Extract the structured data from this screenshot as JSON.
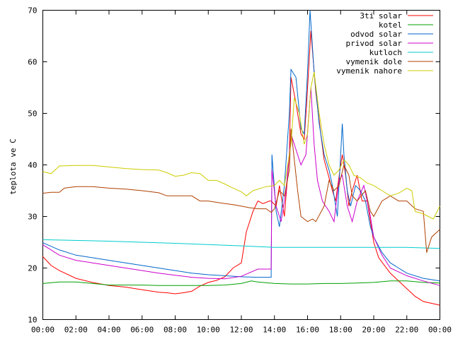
{
  "chart_data": {
    "type": "line",
    "ylabel": "teplota ve C",
    "xlabel": "",
    "ylim": [
      10,
      70
    ],
    "yticks": [
      "10",
      "20",
      "30",
      "40",
      "50",
      "60",
      "70"
    ],
    "xticks": [
      "00:00",
      "02:00",
      "04:00",
      "06:00",
      "08:00",
      "10:00",
      "12:00",
      "14:00",
      "16:00",
      "18:00",
      "20:00",
      "22:00",
      "00:00"
    ],
    "legend_position": "top-right",
    "grid": false,
    "series": [
      {
        "name": "3ti solar",
        "color": "#ff0000",
        "points": [
          [
            0,
            22.2
          ],
          [
            0.5,
            20.5
          ],
          [
            1,
            19.5
          ],
          [
            2,
            18
          ],
          [
            3,
            17.2
          ],
          [
            4,
            16.6
          ],
          [
            5,
            16.3
          ],
          [
            6,
            15.8
          ],
          [
            7,
            15.3
          ],
          [
            7.5,
            15.2
          ],
          [
            8,
            15
          ],
          [
            8.5,
            15.2
          ],
          [
            9,
            15.5
          ],
          [
            9.5,
            16.5
          ],
          [
            10,
            17.2
          ],
          [
            10.5,
            17.6
          ],
          [
            11,
            18.3
          ],
          [
            11.5,
            20
          ],
          [
            12,
            21
          ],
          [
            12.3,
            27
          ],
          [
            12.7,
            31
          ],
          [
            13,
            33
          ],
          [
            13.3,
            32.5
          ],
          [
            13.7,
            33
          ],
          [
            13.8,
            33
          ],
          [
            14.1,
            32
          ],
          [
            14.3,
            36
          ],
          [
            14.6,
            30
          ],
          [
            14.9,
            42
          ],
          [
            15.0,
            57
          ],
          [
            15.3,
            52
          ],
          [
            15.6,
            46
          ],
          [
            15.8,
            45
          ],
          [
            15.95,
            52
          ],
          [
            16.2,
            66
          ],
          [
            16.5,
            54
          ],
          [
            16.8,
            46
          ],
          [
            17,
            41
          ],
          [
            17.3,
            37.5
          ],
          [
            17.5,
            35
          ],
          [
            17.7,
            33
          ],
          [
            18,
            40
          ],
          [
            18.1,
            42
          ],
          [
            18.3,
            38
          ],
          [
            18.5,
            32
          ],
          [
            18.7,
            35
          ],
          [
            19,
            38
          ],
          [
            19.3,
            33
          ],
          [
            19.6,
            33
          ],
          [
            20,
            25
          ],
          [
            20.3,
            22
          ],
          [
            21,
            19
          ],
          [
            21.5,
            17.5
          ],
          [
            22,
            16
          ],
          [
            22.5,
            14.5
          ],
          [
            23,
            13.5
          ],
          [
            24,
            12.8
          ]
        ]
      },
      {
        "name": "kotel",
        "color": "#00a000",
        "points": [
          [
            0,
            17
          ],
          [
            1,
            17.3
          ],
          [
            2,
            17.3
          ],
          [
            3,
            17
          ],
          [
            4,
            16.7
          ],
          [
            5,
            16.7
          ],
          [
            6,
            16.7
          ],
          [
            7,
            16.6
          ],
          [
            8,
            16.6
          ],
          [
            9,
            16.6
          ],
          [
            10,
            16.6
          ],
          [
            11,
            16.7
          ],
          [
            12,
            17
          ],
          [
            12.6,
            17.5
          ],
          [
            13,
            17.3
          ],
          [
            14,
            17
          ],
          [
            15,
            16.9
          ],
          [
            16,
            16.9
          ],
          [
            17,
            17
          ],
          [
            18,
            17
          ],
          [
            19,
            17.1
          ],
          [
            20,
            17.2
          ],
          [
            21,
            17.5
          ],
          [
            22,
            17.5
          ],
          [
            23,
            17.2
          ],
          [
            24,
            17.1
          ]
        ]
      },
      {
        "name": "odvod solar",
        "color": "#0066cc",
        "points": [
          [
            0,
            24.9
          ],
          [
            1,
            23.5
          ],
          [
            2,
            22.5
          ],
          [
            3,
            22
          ],
          [
            4,
            21.5
          ],
          [
            5,
            21
          ],
          [
            6,
            20.5
          ],
          [
            7,
            20
          ],
          [
            8,
            19.5
          ],
          [
            9,
            19
          ],
          [
            10,
            18.7
          ],
          [
            11,
            18.5
          ],
          [
            12,
            18.3
          ],
          [
            13,
            18.2
          ],
          [
            13.8,
            18.2
          ],
          [
            13.85,
            42
          ],
          [
            14.1,
            31
          ],
          [
            14.3,
            28
          ],
          [
            14.6,
            36
          ],
          [
            14.9,
            50
          ],
          [
            15.0,
            58.5
          ],
          [
            15.3,
            57
          ],
          [
            15.6,
            47
          ],
          [
            15.8,
            46
          ],
          [
            16,
            58
          ],
          [
            16.15,
            70
          ],
          [
            16.4,
            58
          ],
          [
            16.7,
            48
          ],
          [
            17,
            42
          ],
          [
            17.3,
            39
          ],
          [
            17.5,
            36
          ],
          [
            17.8,
            30
          ],
          [
            18.1,
            48
          ],
          [
            18.2,
            42
          ],
          [
            18.4,
            35
          ],
          [
            18.6,
            32
          ],
          [
            18.9,
            36
          ],
          [
            19.2,
            35
          ],
          [
            19.5,
            33
          ],
          [
            19.8,
            28
          ],
          [
            20,
            26
          ],
          [
            20.5,
            23
          ],
          [
            21,
            21
          ],
          [
            21.5,
            20
          ],
          [
            22,
            19
          ],
          [
            23,
            18
          ],
          [
            24,
            17.5
          ]
        ]
      },
      {
        "name": "privod solar",
        "color": "#cc00cc",
        "points": [
          [
            0,
            24.5
          ],
          [
            1,
            22.5
          ],
          [
            2,
            21.5
          ],
          [
            3,
            21
          ],
          [
            4,
            20.5
          ],
          [
            5,
            20
          ],
          [
            6,
            19.5
          ],
          [
            7,
            19
          ],
          [
            8,
            18.6
          ],
          [
            9,
            18.2
          ],
          [
            10,
            18
          ],
          [
            11,
            17.9
          ],
          [
            12,
            18.4
          ],
          [
            13,
            19.8
          ],
          [
            13.8,
            19.8
          ],
          [
            13.85,
            39
          ],
          [
            14.1,
            32
          ],
          [
            14.4,
            29
          ],
          [
            14.7,
            35
          ],
          [
            15,
            46
          ],
          [
            15.3,
            43
          ],
          [
            15.6,
            40
          ],
          [
            15.9,
            42
          ],
          [
            16.2,
            55
          ],
          [
            16.4,
            44
          ],
          [
            16.6,
            37
          ],
          [
            16.9,
            33
          ],
          [
            17.3,
            31
          ],
          [
            17.6,
            29
          ],
          [
            17.9,
            37
          ],
          [
            18.1,
            38
          ],
          [
            18.4,
            32
          ],
          [
            18.7,
            29
          ],
          [
            19,
            33
          ],
          [
            19.4,
            36
          ],
          [
            19.8,
            30
          ],
          [
            20,
            26
          ],
          [
            20.5,
            22.5
          ],
          [
            21,
            20
          ],
          [
            22,
            18.5
          ],
          [
            23,
            17.5
          ],
          [
            24,
            16.6
          ]
        ]
      },
      {
        "name": "kutloch",
        "color": "#00cccc",
        "points": [
          [
            0,
            25.5
          ],
          [
            4,
            25.2
          ],
          [
            8,
            24.8
          ],
          [
            12,
            24.3
          ],
          [
            14,
            24
          ],
          [
            18,
            24
          ],
          [
            20,
            24
          ],
          [
            22,
            24
          ],
          [
            24,
            23.8
          ]
        ]
      },
      {
        "name": "vymenik dole",
        "color": "#b04000",
        "points": [
          [
            0,
            34.5
          ],
          [
            0.5,
            34.7
          ],
          [
            1,
            34.7
          ],
          [
            1.3,
            35.5
          ],
          [
            2,
            35.8
          ],
          [
            3,
            35.8
          ],
          [
            4,
            35.5
          ],
          [
            5,
            35.3
          ],
          [
            6,
            35
          ],
          [
            7,
            34.6
          ],
          [
            7.5,
            34
          ],
          [
            8,
            34
          ],
          [
            9,
            34
          ],
          [
            9.5,
            33
          ],
          [
            10,
            33
          ],
          [
            11,
            32.5
          ],
          [
            11.5,
            32.3
          ],
          [
            12,
            32
          ],
          [
            12.5,
            31.7
          ],
          [
            13,
            31.5
          ],
          [
            13.5,
            31.5
          ],
          [
            13.8,
            30.8
          ],
          [
            14,
            31.5
          ],
          [
            14.3,
            35
          ],
          [
            14.6,
            34
          ],
          [
            14.9,
            39
          ],
          [
            15,
            47
          ],
          [
            15.2,
            41
          ],
          [
            15.4,
            35
          ],
          [
            15.6,
            30
          ],
          [
            16,
            29
          ],
          [
            16.3,
            29.5
          ],
          [
            16.5,
            29
          ],
          [
            17,
            32
          ],
          [
            17.3,
            37
          ],
          [
            17.6,
            35
          ],
          [
            17.9,
            36
          ],
          [
            18.2,
            40
          ],
          [
            18.5,
            38
          ],
          [
            18.7,
            34
          ],
          [
            19,
            33
          ],
          [
            19.5,
            35
          ],
          [
            19.8,
            31
          ],
          [
            20,
            30
          ],
          [
            20.5,
            33
          ],
          [
            21,
            34
          ],
          [
            21.5,
            33
          ],
          [
            22,
            33
          ],
          [
            22.5,
            31.5
          ],
          [
            23,
            31
          ],
          [
            23.2,
            23
          ],
          [
            23.5,
            26
          ],
          [
            24,
            27.5
          ]
        ]
      },
      {
        "name": "vymenik nahore",
        "color": "#cccc00",
        "points": [
          [
            0,
            38.7
          ],
          [
            0.5,
            38.3
          ],
          [
            1,
            39.8
          ],
          [
            2,
            39.9
          ],
          [
            3,
            39.9
          ],
          [
            4,
            39.6
          ],
          [
            5,
            39.3
          ],
          [
            6,
            39.1
          ],
          [
            7,
            39
          ],
          [
            7.5,
            38.5
          ],
          [
            8,
            37.8
          ],
          [
            8.5,
            38
          ],
          [
            9,
            38.5
          ],
          [
            9.5,
            38.3
          ],
          [
            10,
            37
          ],
          [
            10.5,
            37
          ],
          [
            11,
            36.3
          ],
          [
            11.5,
            35.5
          ],
          [
            12,
            34.8
          ],
          [
            12.3,
            34
          ],
          [
            12.7,
            35
          ],
          [
            13,
            35.3
          ],
          [
            13.5,
            35.8
          ],
          [
            14,
            36
          ],
          [
            14.3,
            37
          ],
          [
            14.6,
            36
          ],
          [
            15,
            44
          ],
          [
            15.2,
            53
          ],
          [
            15.5,
            50
          ],
          [
            15.8,
            44
          ],
          [
            16,
            46
          ],
          [
            16.2,
            55
          ],
          [
            16.4,
            58
          ],
          [
            16.7,
            50
          ],
          [
            17,
            44
          ],
          [
            17.3,
            40
          ],
          [
            17.6,
            38
          ],
          [
            17.9,
            39
          ],
          [
            18.2,
            41
          ],
          [
            18.5,
            40
          ],
          [
            18.8,
            38
          ],
          [
            19.2,
            37.5
          ],
          [
            19.6,
            36.5
          ],
          [
            20,
            36
          ],
          [
            20.5,
            35
          ],
          [
            21,
            34
          ],
          [
            21.5,
            34.5
          ],
          [
            22,
            35.5
          ],
          [
            22.3,
            35
          ],
          [
            22.5,
            31
          ],
          [
            23,
            30.5
          ],
          [
            23.3,
            30
          ],
          [
            23.6,
            29.5
          ],
          [
            24,
            32
          ]
        ]
      }
    ]
  }
}
